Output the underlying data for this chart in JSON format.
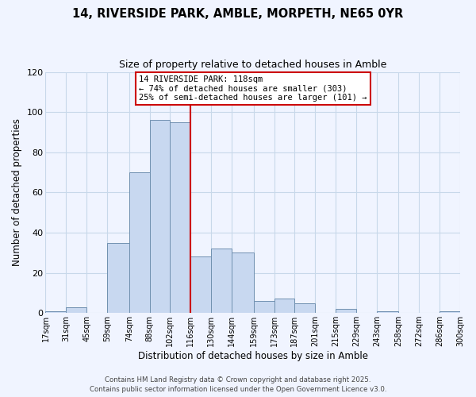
{
  "title": "14, RIVERSIDE PARK, AMBLE, MORPETH, NE65 0YR",
  "subtitle": "Size of property relative to detached houses in Amble",
  "xlabel": "Distribution of detached houses by size in Amble",
  "ylabel": "Number of detached properties",
  "bin_labels": [
    "17sqm",
    "31sqm",
    "45sqm",
    "59sqm",
    "74sqm",
    "88sqm",
    "102sqm",
    "116sqm",
    "130sqm",
    "144sqm",
    "159sqm",
    "173sqm",
    "187sqm",
    "201sqm",
    "215sqm",
    "229sqm",
    "243sqm",
    "258sqm",
    "272sqm",
    "286sqm",
    "300sqm"
  ],
  "bin_edges": [
    17,
    31,
    45,
    59,
    74,
    88,
    102,
    116,
    130,
    144,
    159,
    173,
    187,
    201,
    215,
    229,
    243,
    258,
    272,
    286,
    300
  ],
  "bar_heights": [
    1,
    3,
    0,
    35,
    70,
    96,
    95,
    28,
    32,
    30,
    6,
    7,
    5,
    0,
    2,
    0,
    1,
    0,
    0,
    1
  ],
  "bar_color": "#c8d8f0",
  "bar_edge_color": "#7090b0",
  "grid_color": "#c8d8ea",
  "vline_x": 116,
  "vline_color": "#cc0000",
  "annotation_title": "14 RIVERSIDE PARK: 118sqm",
  "annotation_line1": "← 74% of detached houses are smaller (303)",
  "annotation_line2": "25% of semi-detached houses are larger (101) →",
  "annotation_box_color": "#cc0000",
  "ylim": [
    0,
    120
  ],
  "yticks": [
    0,
    20,
    40,
    60,
    80,
    100,
    120
  ],
  "footer_line1": "Contains HM Land Registry data © Crown copyright and database right 2025.",
  "footer_line2": "Contains public sector information licensed under the Open Government Licence v3.0.",
  "background_color": "#f0f4ff"
}
